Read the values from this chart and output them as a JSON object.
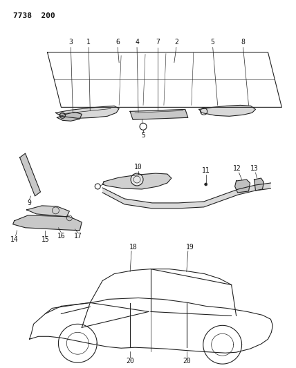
{
  "background_color": "#ffffff",
  "line_color": "#222222",
  "fig_width": 4.28,
  "fig_height": 5.33,
  "dpi": 100,
  "header": "7738  200"
}
